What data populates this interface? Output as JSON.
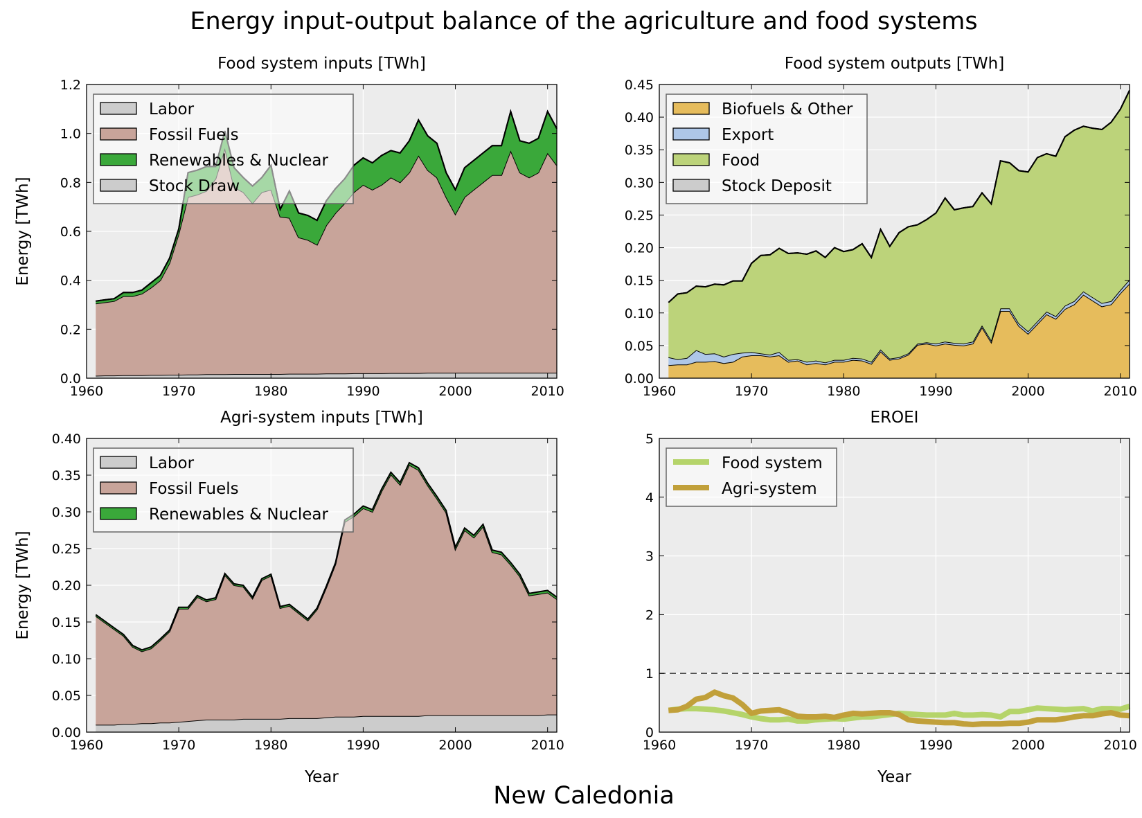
{
  "figure": {
    "suptitle": "Energy input-output balance of the agriculture and food systems",
    "country": "New Caledonia"
  },
  "colors": {
    "labor": "#cccccc",
    "fossil": "#c8a49a",
    "renew": "#3aa83a",
    "stock_draw": "#cccccc",
    "biofuels": "#e6bc5c",
    "export": "#aec7e8",
    "food": "#bcd37a",
    "stock_deposit": "#cccccc",
    "eroei_food": "#b5d46a",
    "eroei_agri": "#c1a03a",
    "panel_bg": "#ececec"
  },
  "chart_data": [
    {
      "id": "food_inputs",
      "type": "area",
      "title": "Food system inputs [TWh]",
      "xlabel": "",
      "ylabel": "Energy [TWh]",
      "xlim": [
        1960,
        2011
      ],
      "ylim": [
        0,
        1.2
      ],
      "xticks": [
        "1960",
        "1970",
        "1980",
        "1990",
        "2000",
        "2010"
      ],
      "yticks": [
        "0.0",
        "0.2",
        "0.4",
        "0.6",
        "0.8",
        "1.0",
        "1.2"
      ],
      "legend_position": "top-left",
      "x": [
        1961,
        1962,
        1963,
        1964,
        1965,
        1966,
        1967,
        1968,
        1969,
        1970,
        1971,
        1972,
        1973,
        1974,
        1975,
        1976,
        1977,
        1978,
        1979,
        1980,
        1981,
        1982,
        1983,
        1984,
        1985,
        1986,
        1987,
        1988,
        1989,
        1990,
        1991,
        1992,
        1993,
        1994,
        1995,
        1996,
        1997,
        1998,
        1999,
        2000,
        2001,
        2002,
        2003,
        2004,
        2005,
        2006,
        2007,
        2008,
        2009,
        2010,
        2011
      ],
      "series": [
        {
          "name": "Labor",
          "color_key": "labor",
          "values": [
            0.01,
            0.011,
            0.011,
            0.012,
            0.012,
            0.012,
            0.013,
            0.013,
            0.014,
            0.014,
            0.015,
            0.015,
            0.016,
            0.016,
            0.016,
            0.017,
            0.017,
            0.017,
            0.017,
            0.017,
            0.017,
            0.018,
            0.018,
            0.018,
            0.018,
            0.019,
            0.019,
            0.019,
            0.02,
            0.02,
            0.02,
            0.02,
            0.021,
            0.021,
            0.021,
            0.021,
            0.022,
            0.022,
            0.022,
            0.022,
            0.022,
            0.022,
            0.022,
            0.022,
            0.022,
            0.022,
            0.022,
            0.022,
            0.022,
            0.022,
            0.022
          ]
        },
        {
          "name": "Fossil Fuels",
          "color_key": "fossil",
          "values": [
            0.295,
            0.299,
            0.304,
            0.323,
            0.323,
            0.333,
            0.357,
            0.387,
            0.456,
            0.576,
            0.725,
            0.735,
            0.749,
            0.799,
            0.924,
            0.763,
            0.743,
            0.698,
            0.743,
            0.753,
            0.643,
            0.637,
            0.557,
            0.547,
            0.527,
            0.606,
            0.656,
            0.696,
            0.74,
            0.77,
            0.75,
            0.77,
            0.799,
            0.779,
            0.819,
            0.889,
            0.828,
            0.798,
            0.718,
            0.648,
            0.718,
            0.748,
            0.778,
            0.808,
            0.808,
            0.908,
            0.818,
            0.798,
            0.818,
            0.898,
            0.848
          ]
        },
        {
          "name": "Renewables & Nuclear",
          "color_key": "renew",
          "values": [
            0.01,
            0.01,
            0.01,
            0.015,
            0.015,
            0.015,
            0.02,
            0.02,
            0.02,
            0.02,
            0.1,
            0.1,
            0.1,
            0.05,
            0.07,
            0.08,
            0.06,
            0.07,
            0.06,
            0.1,
            0.03,
            0.11,
            0.1,
            0.1,
            0.1,
            0.1,
            0.1,
            0.1,
            0.11,
            0.11,
            0.11,
            0.12,
            0.11,
            0.12,
            0.13,
            0.145,
            0.14,
            0.14,
            0.1,
            0.1,
            0.12,
            0.12,
            0.12,
            0.12,
            0.12,
            0.16,
            0.13,
            0.14,
            0.14,
            0.17,
            0.15
          ]
        },
        {
          "name": "Stock Draw",
          "color_key": "stock_draw",
          "values": [
            0,
            0,
            0,
            0,
            0,
            0,
            0,
            0,
            0,
            0,
            0,
            0,
            0,
            0,
            0,
            0,
            0,
            0,
            0,
            0,
            0,
            0,
            0,
            0,
            0,
            0,
            0,
            0,
            0,
            0,
            0,
            0,
            0,
            0,
            0,
            0,
            0,
            0,
            0,
            0,
            0,
            0,
            0,
            0,
            0,
            0,
            0,
            0,
            0,
            0,
            0
          ]
        }
      ]
    },
    {
      "id": "food_outputs",
      "type": "area",
      "title": "Food system outputs [TWh]",
      "xlabel": "",
      "ylabel": "",
      "xlim": [
        1960,
        2011
      ],
      "ylim": [
        0,
        0.45
      ],
      "xticks": [
        "1960",
        "1970",
        "1980",
        "1990",
        "2000",
        "2010"
      ],
      "yticks": [
        "0.00",
        "0.05",
        "0.10",
        "0.15",
        "0.20",
        "0.25",
        "0.30",
        "0.35",
        "0.40",
        "0.45"
      ],
      "legend_position": "top-left",
      "x": [
        1961,
        1962,
        1963,
        1964,
        1965,
        1966,
        1967,
        1968,
        1969,
        1970,
        1971,
        1972,
        1973,
        1974,
        1975,
        1976,
        1977,
        1978,
        1979,
        1980,
        1981,
        1982,
        1983,
        1984,
        1985,
        1986,
        1987,
        1988,
        1989,
        1990,
        1991,
        1992,
        1993,
        1994,
        1995,
        1996,
        1997,
        1998,
        1999,
        2000,
        2001,
        2002,
        2003,
        2004,
        2005,
        2006,
        2007,
        2008,
        2009,
        2010,
        2011
      ],
      "series": [
        {
          "name": "Biofuels & Other",
          "color_key": "biofuels",
          "values": [
            0.02,
            0.021,
            0.021,
            0.025,
            0.025,
            0.026,
            0.023,
            0.025,
            0.033,
            0.035,
            0.035,
            0.033,
            0.035,
            0.025,
            0.027,
            0.021,
            0.023,
            0.021,
            0.025,
            0.025,
            0.028,
            0.027,
            0.022,
            0.041,
            0.028,
            0.03,
            0.036,
            0.051,
            0.053,
            0.05,
            0.053,
            0.051,
            0.05,
            0.053,
            0.078,
            0.055,
            0.103,
            0.103,
            0.08,
            0.068,
            0.083,
            0.098,
            0.091,
            0.106,
            0.113,
            0.128,
            0.119,
            0.11,
            0.113,
            0.13,
            0.145
          ]
        },
        {
          "name": "Export",
          "color_key": "export",
          "values": [
            0.012,
            0.008,
            0.01,
            0.018,
            0.012,
            0.012,
            0.01,
            0.012,
            0.006,
            0.005,
            0.003,
            0.003,
            0.005,
            0.003,
            0.002,
            0.004,
            0.004,
            0.003,
            0.003,
            0.003,
            0.003,
            0.003,
            0.003,
            0.003,
            0.002,
            0.002,
            0.002,
            0.002,
            0.002,
            0.003,
            0.003,
            0.003,
            0.003,
            0.003,
            0.003,
            0.003,
            0.004,
            0.004,
            0.004,
            0.004,
            0.004,
            0.004,
            0.004,
            0.005,
            0.005,
            0.005,
            0.005,
            0.005,
            0.005,
            0.005,
            0.006
          ]
        },
        {
          "name": "Food",
          "color_key": "food",
          "values": [
            0.084,
            0.1,
            0.1,
            0.098,
            0.103,
            0.106,
            0.11,
            0.112,
            0.11,
            0.136,
            0.15,
            0.153,
            0.159,
            0.163,
            0.163,
            0.165,
            0.168,
            0.161,
            0.172,
            0.166,
            0.166,
            0.176,
            0.16,
            0.184,
            0.172,
            0.191,
            0.194,
            0.182,
            0.188,
            0.2,
            0.22,
            0.204,
            0.208,
            0.207,
            0.203,
            0.209,
            0.226,
            0.223,
            0.234,
            0.244,
            0.251,
            0.242,
            0.245,
            0.259,
            0.262,
            0.253,
            0.259,
            0.266,
            0.274,
            0.277,
            0.29
          ]
        },
        {
          "name": "Stock Deposit",
          "color_key": "stock_deposit",
          "values": [
            0,
            0,
            0,
            0,
            0,
            0,
            0,
            0,
            0,
            0,
            0,
            0,
            0,
            0,
            0,
            0,
            0,
            0,
            0,
            0,
            0,
            0,
            0,
            0,
            0,
            0,
            0,
            0,
            0,
            0,
            0,
            0,
            0,
            0,
            0,
            0,
            0,
            0,
            0,
            0,
            0,
            0,
            0,
            0,
            0,
            0,
            0,
            0,
            0,
            0,
            0
          ]
        }
      ]
    },
    {
      "id": "agri_inputs",
      "type": "area",
      "title": "Agri-system inputs [TWh]",
      "xlabel": "Year",
      "ylabel": "Energy [TWh]",
      "xlim": [
        1960,
        2011
      ],
      "ylim": [
        0,
        0.4
      ],
      "xticks": [
        "1960",
        "1970",
        "1980",
        "1990",
        "2000",
        "2010"
      ],
      "yticks": [
        "0.00",
        "0.05",
        "0.10",
        "0.15",
        "0.20",
        "0.25",
        "0.30",
        "0.35",
        "0.40"
      ],
      "legend_position": "top-left",
      "x": [
        1961,
        1962,
        1963,
        1964,
        1965,
        1966,
        1967,
        1968,
        1969,
        1970,
        1971,
        1972,
        1973,
        1974,
        1975,
        1976,
        1977,
        1978,
        1979,
        1980,
        1981,
        1982,
        1983,
        1984,
        1985,
        1986,
        1987,
        1988,
        1989,
        1990,
        1991,
        1992,
        1993,
        1994,
        1995,
        1996,
        1997,
        1998,
        1999,
        2000,
        2001,
        2002,
        2003,
        2004,
        2005,
        2006,
        2007,
        2008,
        2009,
        2010,
        2011
      ],
      "series": [
        {
          "name": "Labor",
          "color_key": "labor",
          "values": [
            0.01,
            0.01,
            0.01,
            0.011,
            0.011,
            0.012,
            0.012,
            0.013,
            0.013,
            0.014,
            0.015,
            0.016,
            0.017,
            0.017,
            0.017,
            0.017,
            0.018,
            0.018,
            0.018,
            0.018,
            0.018,
            0.019,
            0.019,
            0.019,
            0.019,
            0.02,
            0.021,
            0.021,
            0.021,
            0.022,
            0.022,
            0.022,
            0.022,
            0.022,
            0.022,
            0.022,
            0.023,
            0.023,
            0.023,
            0.023,
            0.023,
            0.023,
            0.023,
            0.023,
            0.023,
            0.023,
            0.023,
            0.023,
            0.023,
            0.024,
            0.024
          ]
        },
        {
          "name": "Fossil Fuels",
          "color_key": "fossil",
          "values": [
            0.148,
            0.139,
            0.13,
            0.12,
            0.105,
            0.098,
            0.102,
            0.112,
            0.124,
            0.154,
            0.153,
            0.168,
            0.161,
            0.164,
            0.197,
            0.183,
            0.18,
            0.164,
            0.189,
            0.195,
            0.151,
            0.153,
            0.143,
            0.133,
            0.148,
            0.177,
            0.208,
            0.265,
            0.273,
            0.283,
            0.278,
            0.306,
            0.329,
            0.315,
            0.342,
            0.335,
            0.313,
            0.295,
            0.276,
            0.226,
            0.252,
            0.242,
            0.257,
            0.222,
            0.219,
            0.205,
            0.189,
            0.163,
            0.165,
            0.166,
            0.157
          ]
        },
        {
          "name": "Renewables & Nuclear",
          "color_key": "renew",
          "values": [
            0.002,
            0.002,
            0.002,
            0.002,
            0.002,
            0.002,
            0.002,
            0.002,
            0.002,
            0.002,
            0.002,
            0.002,
            0.002,
            0.002,
            0.002,
            0.002,
            0.002,
            0.002,
            0.002,
            0.002,
            0.002,
            0.002,
            0.002,
            0.002,
            0.002,
            0.002,
            0.002,
            0.003,
            0.003,
            0.003,
            0.003,
            0.003,
            0.003,
            0.003,
            0.003,
            0.003,
            0.003,
            0.003,
            0.003,
            0.003,
            0.003,
            0.003,
            0.003,
            0.003,
            0.003,
            0.003,
            0.003,
            0.003,
            0.003,
            0.003,
            0.003
          ]
        }
      ]
    },
    {
      "id": "eroei",
      "type": "line",
      "title": "EROEI",
      "xlabel": "Year",
      "ylabel": "",
      "xlim": [
        1960,
        2011
      ],
      "ylim": [
        0,
        5
      ],
      "xticks": [
        "1960",
        "1970",
        "1980",
        "1990",
        "2000",
        "2010"
      ],
      "yticks": [
        "0",
        "1",
        "2",
        "3",
        "4",
        "5"
      ],
      "reference_line": {
        "y": 1,
        "style": "dashed"
      },
      "legend_position": "top-left",
      "x": [
        1961,
        1962,
        1963,
        1964,
        1965,
        1966,
        1967,
        1968,
        1969,
        1970,
        1971,
        1972,
        1973,
        1974,
        1975,
        1976,
        1977,
        1978,
        1979,
        1980,
        1981,
        1982,
        1983,
        1984,
        1985,
        1986,
        1987,
        1988,
        1989,
        1990,
        1991,
        1992,
        1993,
        1994,
        1995,
        1996,
        1997,
        1998,
        1999,
        2000,
        2001,
        2002,
        2003,
        2004,
        2005,
        2006,
        2007,
        2008,
        2009,
        2010,
        2011
      ],
      "series": [
        {
          "name": "Food system",
          "color_key": "eroei_food",
          "values": [
            0.37,
            0.39,
            0.4,
            0.4,
            0.39,
            0.38,
            0.36,
            0.33,
            0.3,
            0.26,
            0.23,
            0.21,
            0.21,
            0.22,
            0.19,
            0.19,
            0.21,
            0.22,
            0.23,
            0.22,
            0.24,
            0.26,
            0.26,
            0.28,
            0.3,
            0.32,
            0.31,
            0.3,
            0.29,
            0.29,
            0.29,
            0.32,
            0.29,
            0.29,
            0.3,
            0.29,
            0.26,
            0.35,
            0.35,
            0.38,
            0.41,
            0.4,
            0.39,
            0.38,
            0.39,
            0.4,
            0.36,
            0.4,
            0.4,
            0.39,
            0.44
          ]
        },
        {
          "name": "Agri-system",
          "color_key": "eroei_agri",
          "values": [
            0.37,
            0.38,
            0.44,
            0.56,
            0.59,
            0.68,
            0.62,
            0.58,
            0.47,
            0.32,
            0.36,
            0.37,
            0.38,
            0.33,
            0.27,
            0.26,
            0.26,
            0.27,
            0.25,
            0.29,
            0.32,
            0.31,
            0.32,
            0.33,
            0.33,
            0.3,
            0.21,
            0.19,
            0.18,
            0.17,
            0.16,
            0.16,
            0.14,
            0.13,
            0.14,
            0.14,
            0.14,
            0.15,
            0.15,
            0.17,
            0.21,
            0.21,
            0.21,
            0.23,
            0.26,
            0.28,
            0.28,
            0.31,
            0.33,
            0.29,
            0.28
          ]
        }
      ]
    }
  ]
}
